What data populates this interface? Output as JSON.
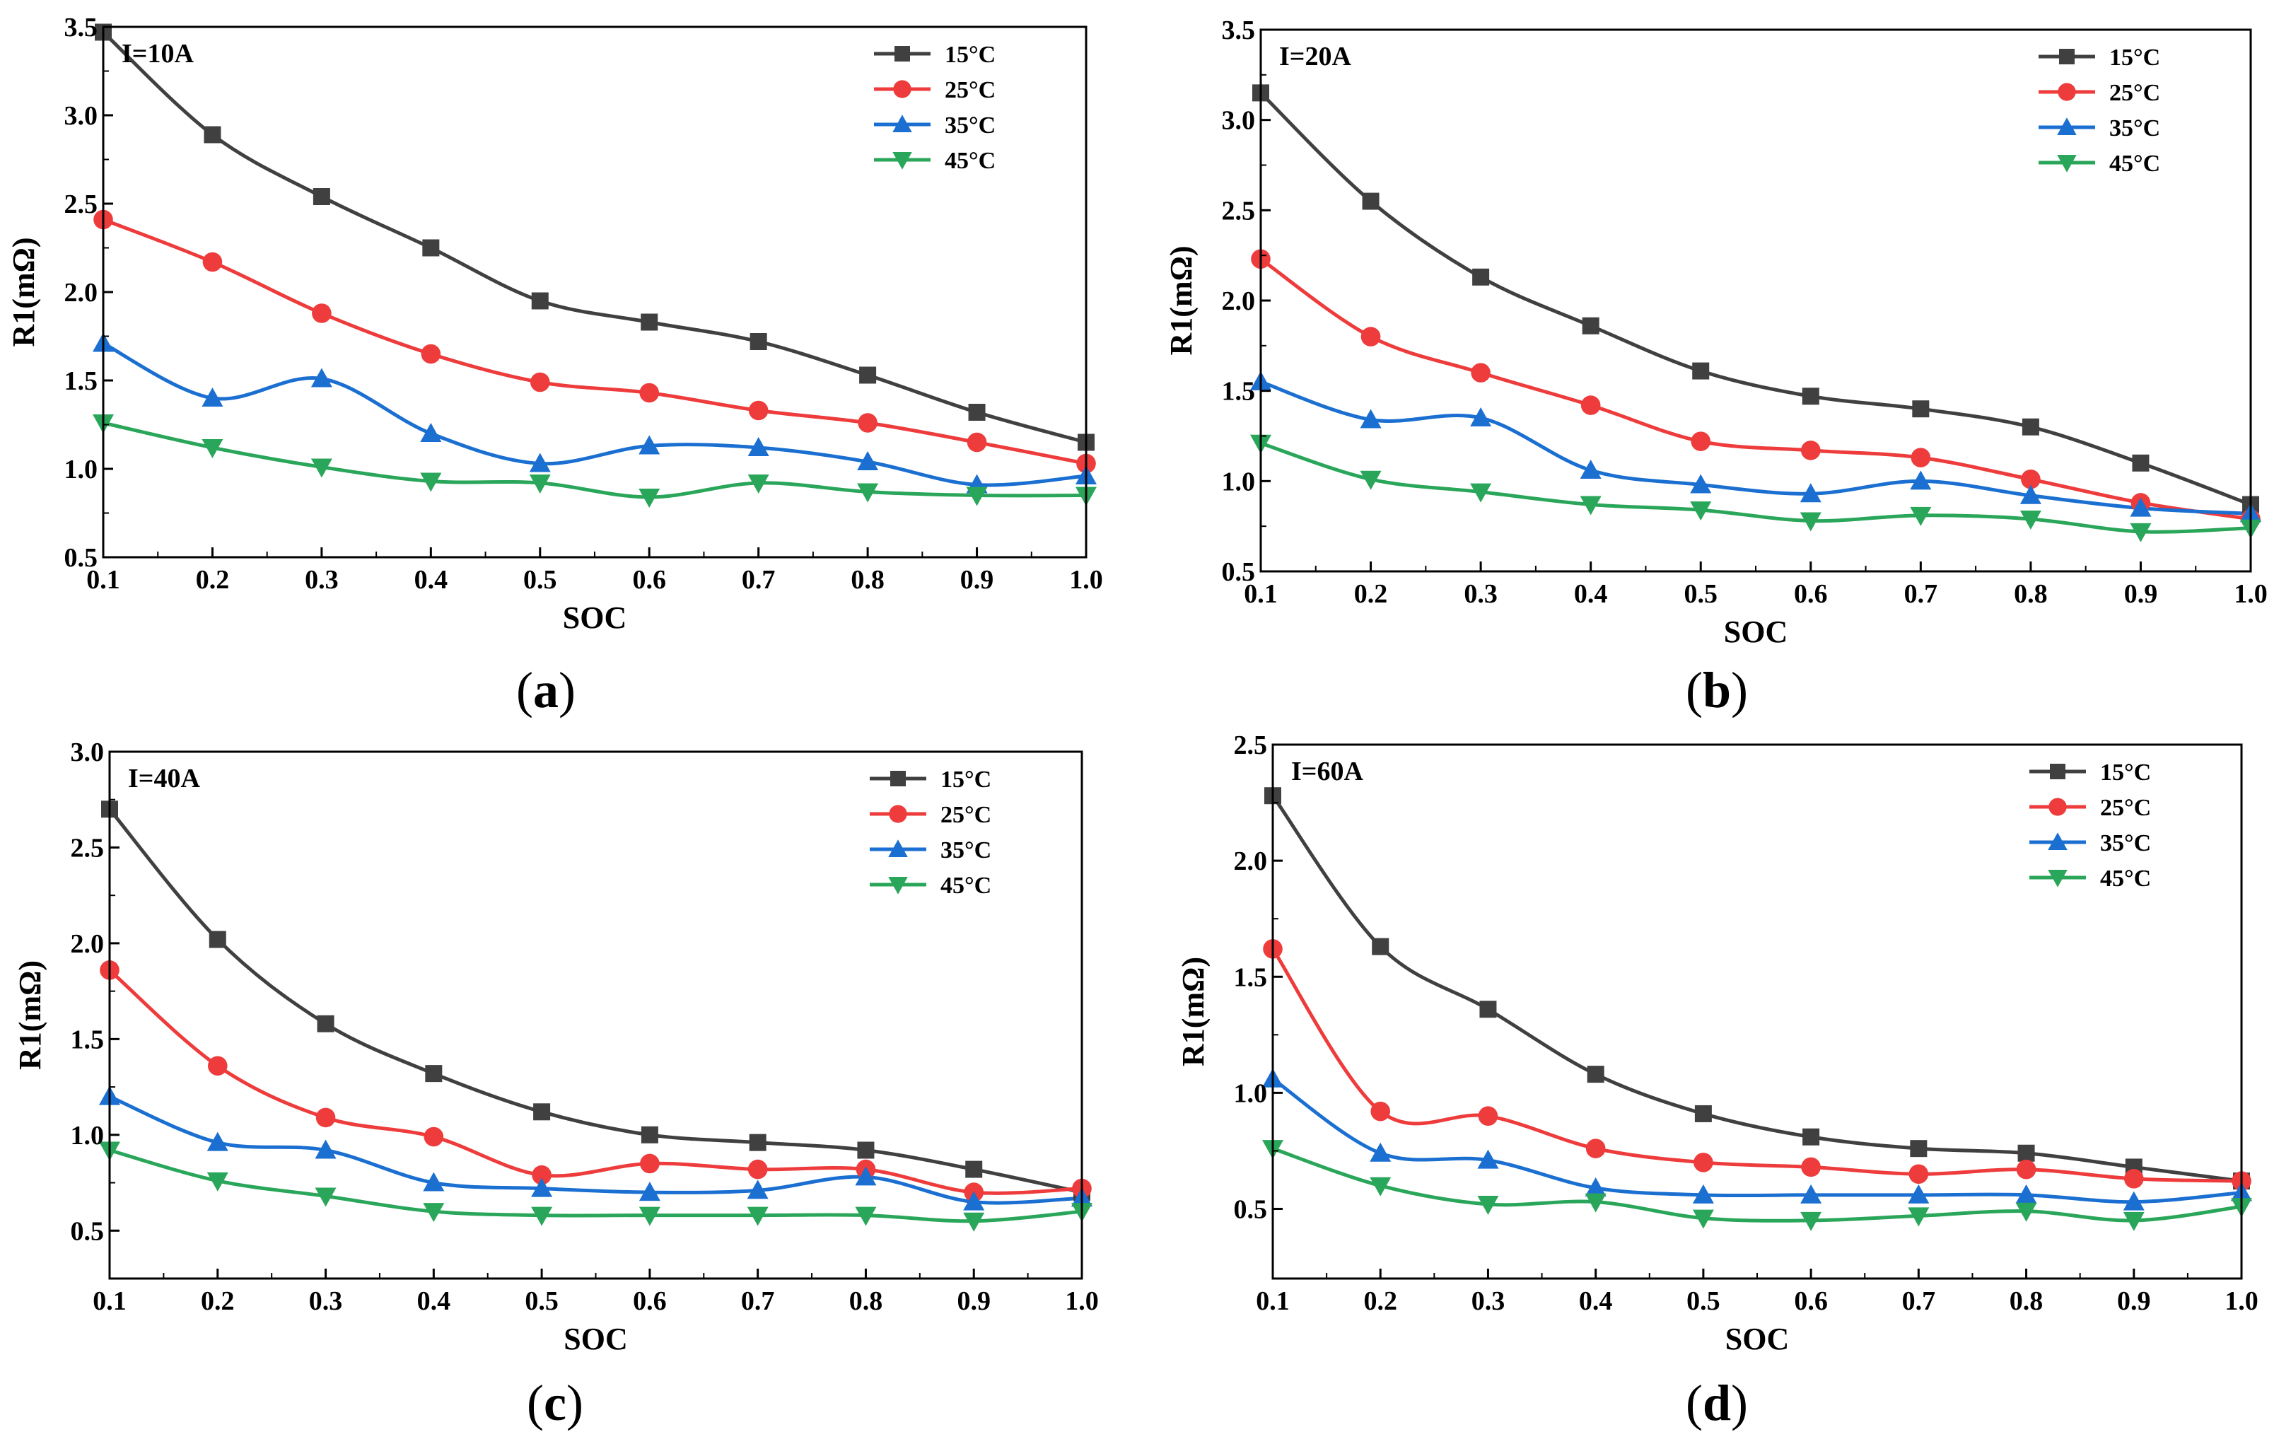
{
  "chart_data": [
    {
      "panel": "(a)",
      "panel_paren_open": "(",
      "panel_letter": "a",
      "panel_paren_close": ")",
      "type": "line",
      "title": "I=10A",
      "xlabel": "SOC",
      "ylabel": "R1(mΩ)",
      "xlim": [
        0.1,
        1.0
      ],
      "ylim": [
        0.5,
        3.5
      ],
      "xticks": [
        "0.1",
        "0.2",
        "0.3",
        "0.4",
        "0.5",
        "0.6",
        "0.7",
        "0.8",
        "0.9",
        "1.0"
      ],
      "yticks": [
        "0.5",
        "1.0",
        "1.5",
        "2.0",
        "2.5",
        "3.0",
        "3.5"
      ],
      "x": [
        0.1,
        0.2,
        0.3,
        0.4,
        0.5,
        0.6,
        0.7,
        0.8,
        0.9,
        1.0
      ],
      "legend_position": "top-right",
      "series": [
        {
          "name": "15°C",
          "color": "#404040",
          "marker": "square",
          "values": [
            3.47,
            2.89,
            2.54,
            2.25,
            1.95,
            1.83,
            1.72,
            1.53,
            1.32,
            1.15
          ]
        },
        {
          "name": "25°C",
          "color": "#ee3b3b",
          "marker": "circle",
          "values": [
            2.41,
            2.17,
            1.88,
            1.65,
            1.49,
            1.43,
            1.33,
            1.26,
            1.15,
            1.03
          ]
        },
        {
          "name": "35°C",
          "color": "#1a6fd1",
          "marker": "triangle-up",
          "values": [
            1.71,
            1.4,
            1.51,
            1.2,
            1.03,
            1.13,
            1.12,
            1.04,
            0.91,
            0.96
          ]
        },
        {
          "name": "45°C",
          "color": "#2aa65a",
          "marker": "triangle-down",
          "values": [
            1.26,
            1.12,
            1.01,
            0.93,
            0.92,
            0.84,
            0.92,
            0.87,
            0.85,
            0.85
          ]
        }
      ]
    },
    {
      "panel": "(b)",
      "panel_paren_open": "(",
      "panel_letter": "b",
      "panel_paren_close": ")",
      "type": "line",
      "title": "I=20A",
      "xlabel": "SOC",
      "ylabel": "R1(mΩ)",
      "xlim": [
        0.1,
        1.0
      ],
      "ylim": [
        0.5,
        3.5
      ],
      "xticks": [
        "0.1",
        "0.2",
        "0.3",
        "0.4",
        "0.5",
        "0.6",
        "0.7",
        "0.8",
        "0.9",
        "1.0"
      ],
      "yticks": [
        "0.5",
        "1.0",
        "1.5",
        "2.0",
        "2.5",
        "3.0",
        "3.5"
      ],
      "x": [
        0.1,
        0.2,
        0.3,
        0.4,
        0.5,
        0.6,
        0.7,
        0.8,
        0.9,
        1.0
      ],
      "legend_position": "top-right",
      "series": [
        {
          "name": "15°C",
          "color": "#404040",
          "marker": "square",
          "values": [
            3.15,
            2.55,
            2.13,
            1.86,
            1.61,
            1.47,
            1.4,
            1.3,
            1.1,
            0.87
          ]
        },
        {
          "name": "25°C",
          "color": "#ee3b3b",
          "marker": "circle",
          "values": [
            2.23,
            1.8,
            1.6,
            1.42,
            1.22,
            1.17,
            1.13,
            1.01,
            0.88,
            0.79
          ]
        },
        {
          "name": "35°C",
          "color": "#1a6fd1",
          "marker": "triangle-up",
          "values": [
            1.55,
            1.34,
            1.35,
            1.06,
            0.98,
            0.93,
            1.0,
            0.92,
            0.85,
            0.82
          ]
        },
        {
          "name": "45°C",
          "color": "#2aa65a",
          "marker": "triangle-down",
          "values": [
            1.21,
            1.01,
            0.94,
            0.87,
            0.84,
            0.78,
            0.81,
            0.79,
            0.72,
            0.74
          ]
        }
      ]
    },
    {
      "panel": "(c)",
      "panel_paren_open": "(",
      "panel_letter": "c",
      "panel_paren_close": ")",
      "type": "line",
      "title": "I=40A",
      "xlabel": "SOC",
      "ylabel": "R1(mΩ)",
      "xlim": [
        0.1,
        1.0
      ],
      "ylim": [
        0.25,
        3.0
      ],
      "xticks": [
        "0.1",
        "0.2",
        "0.3",
        "0.4",
        "0.5",
        "0.6",
        "0.7",
        "0.8",
        "0.9",
        "1.0"
      ],
      "yticks": [
        "0.5",
        "1.0",
        "1.5",
        "2.0",
        "2.5",
        "3.0"
      ],
      "x": [
        0.1,
        0.2,
        0.3,
        0.4,
        0.5,
        0.6,
        0.7,
        0.8,
        0.9,
        1.0
      ],
      "legend_position": "top-right",
      "series": [
        {
          "name": "15°C",
          "color": "#404040",
          "marker": "square",
          "values": [
            2.7,
            2.02,
            1.58,
            1.32,
            1.12,
            1.0,
            0.96,
            0.92,
            0.82,
            0.7
          ]
        },
        {
          "name": "25°C",
          "color": "#ee3b3b",
          "marker": "circle",
          "values": [
            1.86,
            1.36,
            1.09,
            0.99,
            0.79,
            0.85,
            0.82,
            0.82,
            0.7,
            0.72
          ]
        },
        {
          "name": "35°C",
          "color": "#1a6fd1",
          "marker": "triangle-up",
          "values": [
            1.2,
            0.96,
            0.92,
            0.75,
            0.72,
            0.7,
            0.71,
            0.78,
            0.65,
            0.67
          ]
        },
        {
          "name": "45°C",
          "color": "#2aa65a",
          "marker": "triangle-down",
          "values": [
            0.92,
            0.76,
            0.68,
            0.6,
            0.58,
            0.58,
            0.58,
            0.58,
            0.55,
            0.6
          ]
        }
      ]
    },
    {
      "panel": "(d)",
      "panel_paren_open": "(",
      "panel_letter": "d",
      "panel_paren_close": ")",
      "type": "line",
      "title": "I=60A",
      "xlabel": "SOC",
      "ylabel": "R1(mΩ)",
      "xlim": [
        0.1,
        1.0
      ],
      "ylim": [
        0.2,
        2.5
      ],
      "xticks": [
        "0.1",
        "0.2",
        "0.3",
        "0.4",
        "0.5",
        "0.6",
        "0.7",
        "0.8",
        "0.9",
        "1.0"
      ],
      "yticks": [
        "0.5",
        "1.0",
        "1.5",
        "2.0",
        "2.5"
      ],
      "x": [
        0.1,
        0.2,
        0.3,
        0.4,
        0.5,
        0.6,
        0.7,
        0.8,
        0.9,
        1.0
      ],
      "legend_position": "top-right",
      "series": [
        {
          "name": "15°C",
          "color": "#404040",
          "marker": "square",
          "values": [
            2.28,
            1.63,
            1.36,
            1.08,
            0.91,
            0.81,
            0.76,
            0.74,
            0.68,
            0.62
          ]
        },
        {
          "name": "25°C",
          "color": "#ee3b3b",
          "marker": "circle",
          "values": [
            1.62,
            0.92,
            0.9,
            0.76,
            0.7,
            0.68,
            0.65,
            0.67,
            0.63,
            0.62
          ]
        },
        {
          "name": "35°C",
          "color": "#1a6fd1",
          "marker": "triangle-up",
          "values": [
            1.06,
            0.74,
            0.71,
            0.59,
            0.56,
            0.56,
            0.56,
            0.56,
            0.53,
            0.57
          ]
        },
        {
          "name": "45°C",
          "color": "#2aa65a",
          "marker": "triangle-down",
          "values": [
            0.76,
            0.6,
            0.52,
            0.53,
            0.46,
            0.45,
            0.47,
            0.49,
            0.45,
            0.51
          ]
        }
      ]
    }
  ]
}
